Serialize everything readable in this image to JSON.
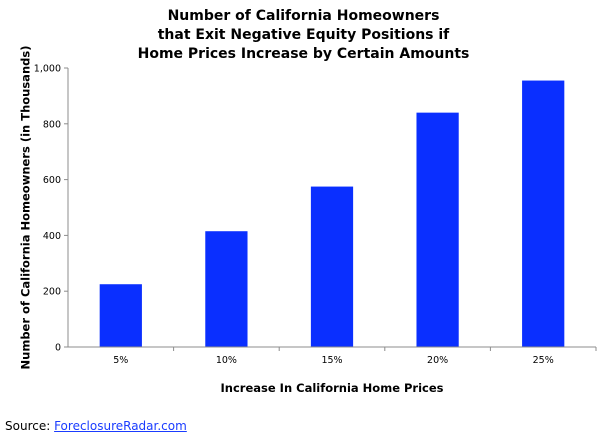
{
  "chart_data": {
    "type": "bar",
    "title_lines": [
      "Number of California Homeowners",
      "that Exit Negative Equity Positions if",
      "Home Prices Increase by Certain Amounts"
    ],
    "xlabel": "Increase In California Home Prices",
    "ylabel": "Number of California Homeowners (in Thousands)",
    "categories": [
      "5%",
      "10%",
      "15%",
      "20%",
      "25%"
    ],
    "values": [
      225,
      415,
      575,
      840,
      955
    ],
    "ylim": [
      0,
      1000
    ],
    "yticks": [
      0,
      200,
      400,
      600,
      800,
      1000
    ],
    "ytick_labels": [
      "0",
      "200",
      "400",
      "600",
      "800",
      "1,000"
    ],
    "grid": false,
    "legend": "none",
    "bar_color": "#0a2fff",
    "axis_color": "#8c8c8c"
  },
  "source": {
    "prefix": "Source: ",
    "link_text": "ForeclosureRadar.com",
    "link_color": "#1a3cff"
  }
}
